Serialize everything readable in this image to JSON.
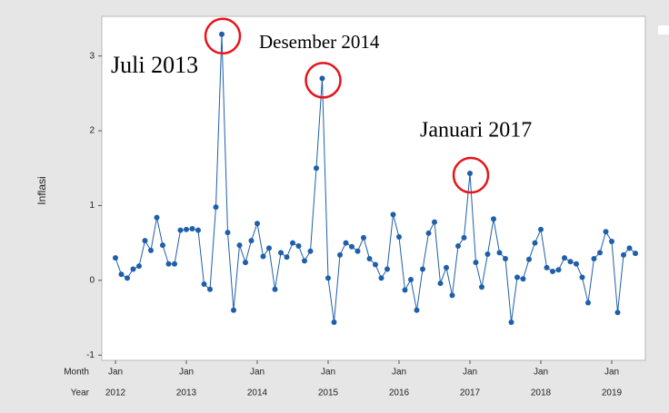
{
  "chart_data": {
    "type": "line",
    "y_axis_label": "Inflasi",
    "x_row_labels": [
      "Month",
      "Year"
    ],
    "categories": [
      "Jan",
      null,
      null,
      null,
      null,
      null,
      null,
      null,
      null,
      null,
      null,
      null,
      "Jan",
      null,
      null,
      null,
      null,
      null,
      null,
      null,
      null,
      null,
      null,
      null,
      "Jan",
      null,
      null,
      null,
      null,
      null,
      null,
      null,
      null,
      null,
      null,
      null,
      "Jan",
      null,
      null,
      null,
      null,
      null,
      null,
      null,
      null,
      null,
      null,
      null,
      "Jan",
      null,
      null,
      null,
      null,
      null,
      null,
      null,
      null,
      null,
      null,
      null,
      "Jan",
      null,
      null,
      null,
      null,
      null,
      null,
      null,
      null,
      null,
      null,
      null,
      "Jan",
      null,
      null,
      null,
      null,
      null,
      null,
      null,
      null,
      null,
      null,
      null,
      "Jan",
      null,
      null,
      null,
      null
    ],
    "years": [
      "2012",
      "2013",
      "2014",
      "2015",
      "2016",
      "2017",
      "2018",
      "2019"
    ],
    "series": [
      {
        "name": "Inflasi",
        "color": "#1f5faa",
        "values": [
          0.3,
          0.08,
          0.03,
          0.15,
          0.19,
          0.53,
          0.4,
          0.84,
          0.47,
          0.22,
          0.22,
          0.67,
          0.68,
          0.69,
          0.67,
          -0.05,
          -0.12,
          0.98,
          3.29,
          0.64,
          -0.4,
          0.47,
          0.24,
          0.53,
          0.76,
          0.32,
          0.43,
          -0.12,
          0.37,
          0.31,
          0.5,
          0.46,
          0.26,
          0.39,
          1.5,
          2.7,
          0.03,
          -0.56,
          0.34,
          0.5,
          0.45,
          0.39,
          0.57,
          0.29,
          0.21,
          0.03,
          0.15,
          0.88,
          0.58,
          -0.13,
          0.01,
          -0.4,
          0.15,
          0.63,
          0.78,
          -0.04,
          0.17,
          -0.2,
          0.46,
          0.57,
          1.43,
          0.24,
          -0.09,
          0.35,
          0.82,
          0.37,
          0.29,
          -0.56,
          0.04,
          0.02,
          0.28,
          0.5,
          0.68,
          0.17,
          0.12,
          0.14,
          0.3,
          0.25,
          0.22,
          0.04,
          -0.3,
          0.29,
          0.37,
          0.65,
          0.52,
          -0.43,
          0.34,
          0.43,
          0.36
        ]
      }
    ],
    "ylim": [
      -1.07,
      3.53
    ],
    "yticks": [
      -1,
      0,
      1,
      2,
      3
    ],
    "annotations": [
      "Juli  2013",
      "Desember 2014",
      "Januari 2017"
    ],
    "annotation_color": "#e8141b"
  }
}
